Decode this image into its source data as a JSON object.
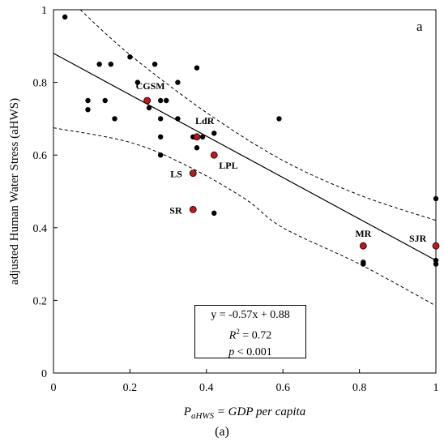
{
  "chart_data": {
    "type": "scatter",
    "panel_letter": "a",
    "ylabel": "adjusted Human Water Stress (aHWS)",
    "xlabel_main": "P",
    "xlabel_sub": "aHWS",
    "xlabel_rest": " = GDP per capita",
    "xlim": [
      0,
      1
    ],
    "ylim": [
      0,
      1
    ],
    "x_ticks": [
      "0",
      "0.2",
      "0.4",
      "0.6",
      "0.8",
      "1"
    ],
    "y_ticks": [
      "0",
      "0.2",
      "0.4",
      "0.6",
      "0.8",
      "1"
    ],
    "grid": false,
    "points": [
      {
        "x": 0.03,
        "y": 0.98
      },
      {
        "x": 0.09,
        "y": 0.75
      },
      {
        "x": 0.09,
        "y": 0.725
      },
      {
        "x": 0.12,
        "y": 0.85
      },
      {
        "x": 0.135,
        "y": 0.75
      },
      {
        "x": 0.15,
        "y": 0.85
      },
      {
        "x": 0.16,
        "y": 0.7
      },
      {
        "x": 0.2,
        "y": 0.87
      },
      {
        "x": 0.22,
        "y": 0.8
      },
      {
        "x": 0.25,
        "y": 0.73
      },
      {
        "x": 0.265,
        "y": 0.85
      },
      {
        "x": 0.28,
        "y": 0.75
      },
      {
        "x": 0.28,
        "y": 0.7
      },
      {
        "x": 0.28,
        "y": 0.65
      },
      {
        "x": 0.28,
        "y": 0.6
      },
      {
        "x": 0.295,
        "y": 0.75
      },
      {
        "x": 0.325,
        "y": 0.8
      },
      {
        "x": 0.325,
        "y": 0.7
      },
      {
        "x": 0.365,
        "y": 0.65
      },
      {
        "x": 0.375,
        "y": 0.84
      },
      {
        "x": 0.375,
        "y": 0.62
      },
      {
        "x": 0.39,
        "y": 0.65
      },
      {
        "x": 0.42,
        "y": 0.66
      },
      {
        "x": 0.42,
        "y": 0.44
      },
      {
        "x": 0.59,
        "y": 0.7
      },
      {
        "x": 0.81,
        "y": 0.305
      },
      {
        "x": 0.81,
        "y": 0.3
      },
      {
        "x": 1.0,
        "y": 0.48
      },
      {
        "x": 1.0,
        "y": 0.31
      },
      {
        "x": 1.0,
        "y": 0.3
      }
    ],
    "highlighted": [
      {
        "name": "CGSM",
        "x": 0.245,
        "y": 0.75
      },
      {
        "name": "LdR",
        "x": 0.375,
        "y": 0.65
      },
      {
        "name": "LPL",
        "x": 0.42,
        "y": 0.6
      },
      {
        "name": "LS",
        "x": 0.365,
        "y": 0.55
      },
      {
        "name": "SR",
        "x": 0.365,
        "y": 0.45
      },
      {
        "name": "MR",
        "x": 0.81,
        "y": 0.35
      },
      {
        "name": "SJR",
        "x": 1.0,
        "y": 0.35
      }
    ],
    "regression": {
      "slope": -0.57,
      "intercept": 0.88
    },
    "confidence_upper": [
      [
        0.07,
        1.0
      ],
      [
        0.2,
        0.876
      ],
      [
        0.4,
        0.717
      ],
      [
        0.6,
        0.585
      ],
      [
        0.8,
        0.49
      ],
      [
        1.0,
        0.42
      ]
    ],
    "confidence_lower": [
      [
        0.0,
        0.675
      ],
      [
        0.2,
        0.635
      ],
      [
        0.35,
        0.57
      ],
      [
        0.5,
        0.48
      ],
      [
        0.6,
        0.4
      ],
      [
        0.8,
        0.3
      ],
      [
        1.0,
        0.185
      ]
    ],
    "colors": {
      "points": "#000000",
      "highlight": "#c0161c",
      "line": "#000000"
    },
    "stats": {
      "equation": "y = -0.57x + 0.88",
      "r2_prefix": "R",
      "r2_sup": "2",
      "r2_value": " = 0.72",
      "p_prefix": "p",
      "p_value": " < 0.001"
    },
    "caption": "(a)"
  }
}
